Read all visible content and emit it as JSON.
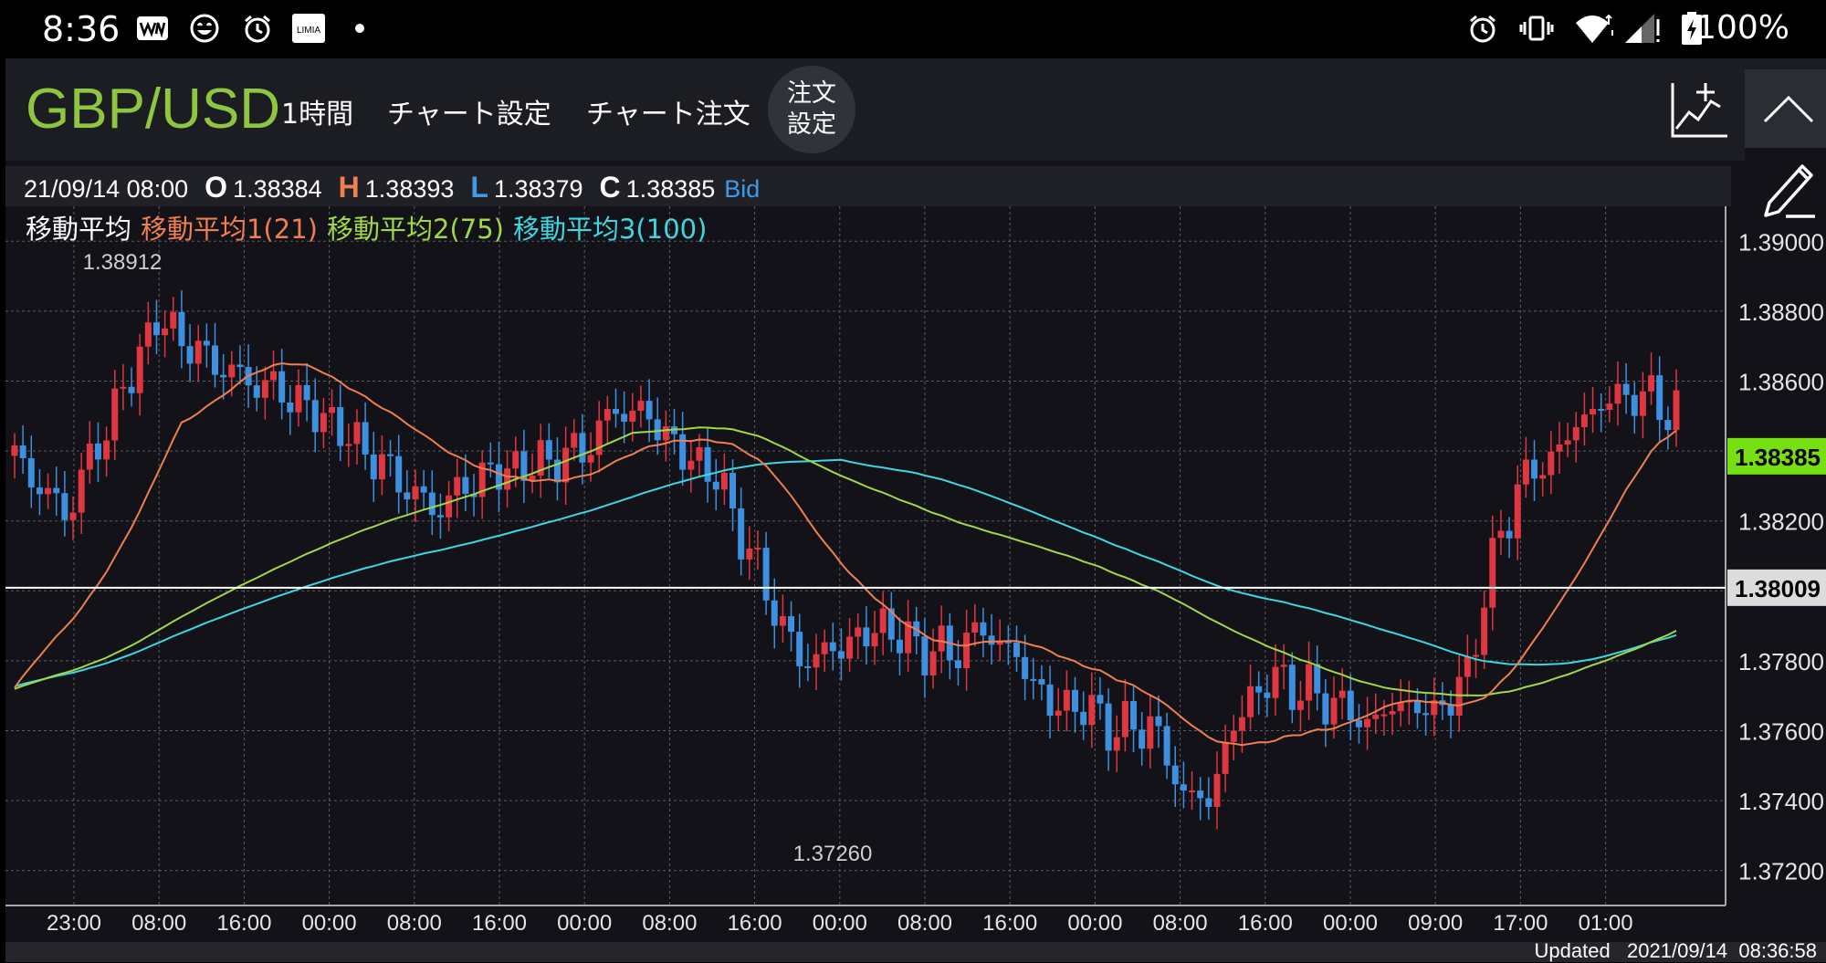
{
  "status_bar": {
    "time": "8:36",
    "battery": "100%",
    "left_icons": [
      "weathernews-icon",
      "smiley-icon",
      "alarm-icon",
      "limia-icon",
      "dot-icon"
    ],
    "limia_label": "LIMIA",
    "right_icons": [
      "alarm-icon",
      "vibrate-icon",
      "wifi-icon",
      "signal-icon",
      "battery-icon"
    ]
  },
  "toolbar": {
    "pair": "GBP/USD",
    "timeframe": "1時間",
    "chart_settings": "チャート設定",
    "chart_order": "チャート注文",
    "order_settings_line1": "注文",
    "order_settings_line2": "設定",
    "indicator_icon": "add-indicator-icon",
    "collapse_icon": "chevron-up-icon",
    "draw_icon": "pencil-icon"
  },
  "info": {
    "datetime": "21/09/14 08:00",
    "open_label": "O",
    "open": "1.38384",
    "high_label": "H",
    "high": "1.38393",
    "low_label": "L",
    "low": "1.38379",
    "close_label": "C",
    "close": "1.38385",
    "side": "Bid"
  },
  "colors": {
    "up": "#e0363f",
    "down": "#3d8fe0",
    "ma1": "#ef7f50",
    "ma2": "#9fd848",
    "ma3": "#3ed6df",
    "current_price_bg": "#76e012",
    "pair_green": "#8ec63f",
    "bid_blue": "#3d9be9"
  },
  "legend": {
    "title": "移動平均",
    "ma1": "移動平均1(21)",
    "ma2": "移動平均2(75)",
    "ma3": "移動平均3(100)"
  },
  "chart_data": {
    "type": "candlestick",
    "ylim": [
      1.371,
      1.391
    ],
    "y_ticks": [
      "1.39000",
      "1.38800",
      "1.38600",
      "1.38400",
      "1.38200",
      "1.38000",
      "1.37800",
      "1.37600",
      "1.37400",
      "1.37200"
    ],
    "x_ticks": [
      "23:00",
      "08:00",
      "16:00",
      "00:00",
      "08:00",
      "16:00",
      "00:00",
      "08:00",
      "16:00",
      "00:00",
      "08:00",
      "16:00",
      "00:00",
      "08:00",
      "16:00",
      "00:00",
      "09:00",
      "17:00",
      "01:00"
    ],
    "current_price": "1.38385",
    "reference_line": "1.38009",
    "high_annotation": "1.38912",
    "low_annotation": "1.37260",
    "grid": true,
    "candle_count": 200,
    "close_path": [
      [
        0,
        1.3838
      ],
      [
        6,
        1.3822
      ],
      [
        12,
        1.3852
      ],
      [
        17,
        1.3878
      ],
      [
        22,
        1.3868
      ],
      [
        27,
        1.3861
      ],
      [
        32,
        1.3857
      ],
      [
        38,
        1.3848
      ],
      [
        44,
        1.3836
      ],
      [
        50,
        1.3823
      ],
      [
        56,
        1.3833
      ],
      [
        62,
        1.3836
      ],
      [
        68,
        1.384
      ],
      [
        72,
        1.3852
      ],
      [
        76,
        1.385
      ],
      [
        80,
        1.3839
      ],
      [
        84,
        1.3833
      ],
      [
        90,
        1.38
      ],
      [
        94,
        1.378
      ],
      [
        98,
        1.3783
      ],
      [
        104,
        1.379
      ],
      [
        108,
        1.3784
      ],
      [
        112,
        1.3782
      ],
      [
        116,
        1.3789
      ],
      [
        120,
        1.3781
      ],
      [
        124,
        1.3767
      ],
      [
        128,
        1.3767
      ],
      [
        132,
        1.376
      ],
      [
        136,
        1.3762
      ],
      [
        140,
        1.3742
      ],
      [
        143,
        1.374
      ],
      [
        146,
        1.3762
      ],
      [
        150,
        1.3775
      ],
      [
        154,
        1.3772
      ],
      [
        158,
        1.3768
      ],
      [
        162,
        1.3762
      ],
      [
        166,
        1.3768
      ],
      [
        170,
        1.3765
      ],
      [
        174,
        1.3775
      ],
      [
        176,
        1.38
      ],
      [
        180,
        1.383
      ],
      [
        184,
        1.3838
      ],
      [
        188,
        1.385
      ],
      [
        192,
        1.3856
      ],
      [
        196,
        1.3855
      ],
      [
        200,
        1.3849
      ]
    ],
    "series": [
      {
        "name": "移動平均1(21)",
        "period": 21
      },
      {
        "name": "移動平均2(75)",
        "period": 75
      },
      {
        "name": "移動平均3(100)",
        "period": 100
      }
    ]
  },
  "footer": {
    "updated": "Updated   2021/09/14  08:36:58"
  }
}
